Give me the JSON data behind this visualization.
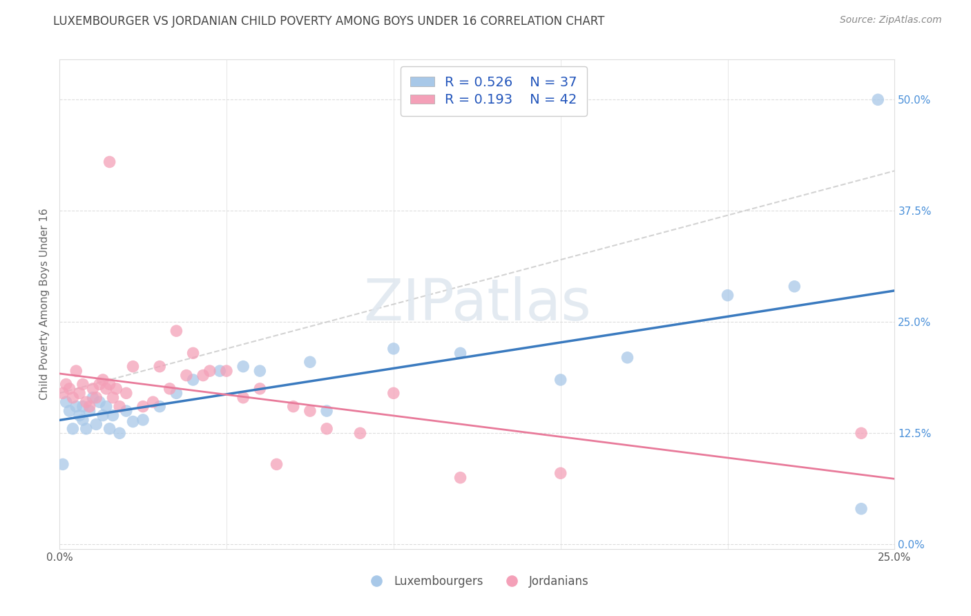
{
  "title": "LUXEMBOURGER VS JORDANIAN CHILD POVERTY AMONG BOYS UNDER 16 CORRELATION CHART",
  "source": "Source: ZipAtlas.com",
  "ylabel": "Child Poverty Among Boys Under 16",
  "xlim": [
    0.0,
    0.25
  ],
  "ylim": [
    -0.005,
    0.545
  ],
  "yticks": [
    0.0,
    0.125,
    0.25,
    0.375,
    0.5
  ],
  "xtick_show": [
    0.0,
    0.25
  ],
  "lux_R": 0.526,
  "lux_N": 37,
  "jor_R": 0.193,
  "jor_N": 42,
  "lux_color": "#a8c8e8",
  "jor_color": "#f4a0b8",
  "lux_line_color": "#3a7abf",
  "jor_line_color": "#e87a9a",
  "jor_dash_color": "#c8c8c8",
  "watermark_text": "ZIPatlas",
  "lux_scatter_x": [
    0.001,
    0.002,
    0.003,
    0.004,
    0.005,
    0.006,
    0.007,
    0.007,
    0.008,
    0.009,
    0.01,
    0.011,
    0.012,
    0.013,
    0.014,
    0.015,
    0.016,
    0.018,
    0.02,
    0.022,
    0.025,
    0.03,
    0.035,
    0.04,
    0.048,
    0.055,
    0.06,
    0.075,
    0.08,
    0.1,
    0.12,
    0.15,
    0.17,
    0.2,
    0.22,
    0.24,
    0.245
  ],
  "lux_scatter_y": [
    0.09,
    0.16,
    0.15,
    0.13,
    0.155,
    0.145,
    0.155,
    0.14,
    0.13,
    0.15,
    0.165,
    0.135,
    0.16,
    0.145,
    0.155,
    0.13,
    0.145,
    0.125,
    0.15,
    0.138,
    0.14,
    0.155,
    0.17,
    0.185,
    0.195,
    0.2,
    0.195,
    0.205,
    0.15,
    0.22,
    0.215,
    0.185,
    0.21,
    0.28,
    0.29,
    0.04,
    0.5
  ],
  "jor_scatter_x": [
    0.001,
    0.002,
    0.003,
    0.004,
    0.005,
    0.006,
    0.007,
    0.008,
    0.009,
    0.01,
    0.011,
    0.012,
    0.013,
    0.014,
    0.015,
    0.016,
    0.017,
    0.018,
    0.02,
    0.022,
    0.025,
    0.028,
    0.03,
    0.033,
    0.035,
    0.038,
    0.04,
    0.043,
    0.045,
    0.05,
    0.055,
    0.06,
    0.065,
    0.07,
    0.075,
    0.08,
    0.09,
    0.1,
    0.12,
    0.15,
    0.015,
    0.24
  ],
  "jor_scatter_y": [
    0.17,
    0.18,
    0.175,
    0.165,
    0.195,
    0.17,
    0.18,
    0.16,
    0.155,
    0.175,
    0.165,
    0.18,
    0.185,
    0.175,
    0.18,
    0.165,
    0.175,
    0.155,
    0.17,
    0.2,
    0.155,
    0.16,
    0.2,
    0.175,
    0.24,
    0.19,
    0.215,
    0.19,
    0.195,
    0.195,
    0.165,
    0.175,
    0.09,
    0.155,
    0.15,
    0.13,
    0.125,
    0.17,
    0.075,
    0.08,
    0.43,
    0.125
  ]
}
